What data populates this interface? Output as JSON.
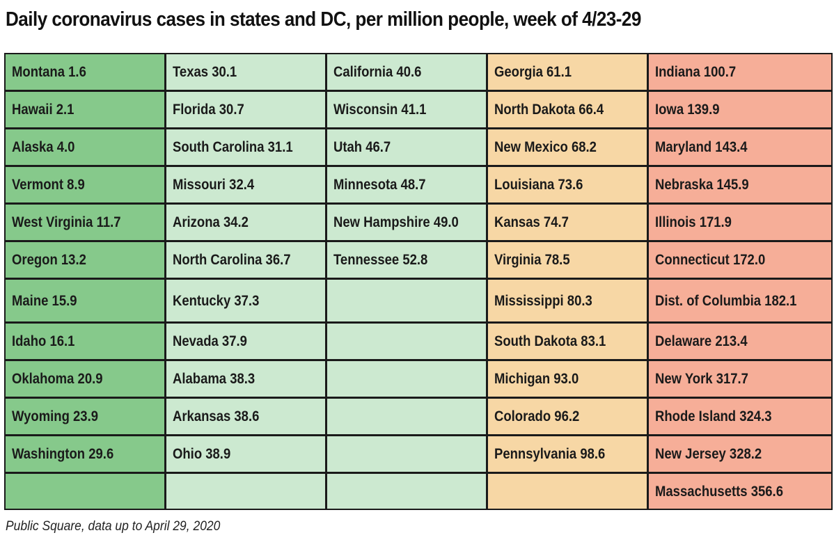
{
  "title": "Daily coronavirus cases in states and DC, per million people, week of 4/23-29",
  "source": "Public Square, data up to April 29, 2020",
  "chart_data": {
    "type": "table",
    "title": "Daily coronavirus cases in states and DC, per million people, week of 4/23-29",
    "columns": [
      {
        "color": "#86c98b",
        "entries": [
          {
            "label": "Montana 1.6",
            "state": "Montana",
            "value": 1.6
          },
          {
            "label": "Hawaii 2.1",
            "state": "Hawaii",
            "value": 2.1
          },
          {
            "label": "Alaska 4.0",
            "state": "Alaska",
            "value": 4.0
          },
          {
            "label": "Vermont 8.9",
            "state": "Vermont",
            "value": 8.9
          },
          {
            "label": "West Virginia 11.7",
            "state": "West Virginia",
            "value": 11.7
          },
          {
            "label": "Oregon 13.2",
            "state": "Oregon",
            "value": 13.2
          },
          {
            "label": "Maine 15.9",
            "state": "Maine",
            "value": 15.9
          },
          {
            "label": "Idaho 16.1",
            "state": "Idaho",
            "value": 16.1
          },
          {
            "label": "Oklahoma 20.9",
            "state": "Oklahoma",
            "value": 20.9
          },
          {
            "label": "Wyoming 23.9",
            "state": "Wyoming",
            "value": 23.9
          },
          {
            "label": "Washington 29.6",
            "state": "Washington",
            "value": 29.6
          },
          {
            "label": "",
            "state": "",
            "value": null
          }
        ]
      },
      {
        "color": "#cce9d0",
        "entries": [
          {
            "label": "Texas 30.1",
            "state": "Texas",
            "value": 30.1
          },
          {
            "label": "Florida 30.7",
            "state": "Florida",
            "value": 30.7
          },
          {
            "label": "South Carolina 31.1",
            "state": "South Carolina",
            "value": 31.1
          },
          {
            "label": "Missouri 32.4",
            "state": "Missouri",
            "value": 32.4
          },
          {
            "label": "Arizona 34.2",
            "state": "Arizona",
            "value": 34.2
          },
          {
            "label": "North Carolina 36.7",
            "state": "North Carolina",
            "value": 36.7
          },
          {
            "label": "Kentucky 37.3",
            "state": "Kentucky",
            "value": 37.3
          },
          {
            "label": "Nevada 37.9",
            "state": "Nevada",
            "value": 37.9
          },
          {
            "label": "Alabama 38.3",
            "state": "Alabama",
            "value": 38.3
          },
          {
            "label": "Arkansas 38.6",
            "state": "Arkansas",
            "value": 38.6
          },
          {
            "label": "Ohio 38.9",
            "state": "Ohio",
            "value": 38.9
          },
          {
            "label": "",
            "state": "",
            "value": null
          }
        ]
      },
      {
        "color": "#cce9d0",
        "entries": [
          {
            "label": "California 40.6",
            "state": "California",
            "value": 40.6
          },
          {
            "label": "Wisconsin 41.1",
            "state": "Wisconsin",
            "value": 41.1
          },
          {
            "label": "Utah 46.7",
            "state": "Utah",
            "value": 46.7
          },
          {
            "label": "Minnesota 48.7",
            "state": "Minnesota",
            "value": 48.7
          },
          {
            "label": "New Hampshire 49.0",
            "state": "New Hampshire",
            "value": 49.0
          },
          {
            "label": "Tennessee 52.8",
            "state": "Tennessee",
            "value": 52.8
          },
          {
            "label": "",
            "state": "",
            "value": null
          },
          {
            "label": "",
            "state": "",
            "value": null
          },
          {
            "label": "",
            "state": "",
            "value": null
          },
          {
            "label": "",
            "state": "",
            "value": null
          },
          {
            "label": "",
            "state": "",
            "value": null
          },
          {
            "label": "",
            "state": "",
            "value": null
          }
        ]
      },
      {
        "color": "#f7d7a5",
        "entries": [
          {
            "label": "Georgia 61.1",
            "state": "Georgia",
            "value": 61.1
          },
          {
            "label": "North Dakota 66.4",
            "state": "North Dakota",
            "value": 66.4
          },
          {
            "label": "New Mexico 68.2",
            "state": "New Mexico",
            "value": 68.2
          },
          {
            "label": "Louisiana 73.6",
            "state": "Louisiana",
            "value": 73.6
          },
          {
            "label": "Kansas 74.7",
            "state": "Kansas",
            "value": 74.7
          },
          {
            "label": "Virginia 78.5",
            "state": "Virginia",
            "value": 78.5
          },
          {
            "label": "Mississippi 80.3",
            "state": "Mississippi",
            "value": 80.3
          },
          {
            "label": "South Dakota 83.1",
            "state": "South Dakota",
            "value": 83.1
          },
          {
            "label": "Michigan 93.0",
            "state": "Michigan",
            "value": 93.0
          },
          {
            "label": "Colorado 96.2",
            "state": "Colorado",
            "value": 96.2
          },
          {
            "label": "Pennsylvania 98.6",
            "state": "Pennsylvania",
            "value": 98.6
          },
          {
            "label": "",
            "state": "",
            "value": null
          }
        ]
      },
      {
        "color": "#f6ae98",
        "entries": [
          {
            "label": "Indiana 100.7",
            "state": "Indiana",
            "value": 100.7
          },
          {
            "label": "Iowa 139.9",
            "state": "Iowa",
            "value": 139.9
          },
          {
            "label": "Maryland 143.4",
            "state": "Maryland",
            "value": 143.4
          },
          {
            "label": "Nebraska 145.9",
            "state": "Nebraska",
            "value": 145.9
          },
          {
            "label": "Illinois 171.9",
            "state": "Illinois",
            "value": 171.9
          },
          {
            "label": "Connecticut 172.0",
            "state": "Connecticut",
            "value": 172.0
          },
          {
            "label": "Dist. of Columbia 182.1",
            "state": "Dist. of Columbia",
            "value": 182.1
          },
          {
            "label": "Delaware 213.4",
            "state": "Delaware",
            "value": 213.4
          },
          {
            "label": "New York 317.7",
            "state": "New York",
            "value": 317.7
          },
          {
            "label": "Rhode Island 324.3",
            "state": "Rhode Island",
            "value": 324.3
          },
          {
            "label": "New Jersey 328.2",
            "state": "New Jersey",
            "value": 328.2
          },
          {
            "label": "Massachusetts 356.6",
            "state": "Massachusetts",
            "value": 356.6
          }
        ]
      }
    ]
  }
}
